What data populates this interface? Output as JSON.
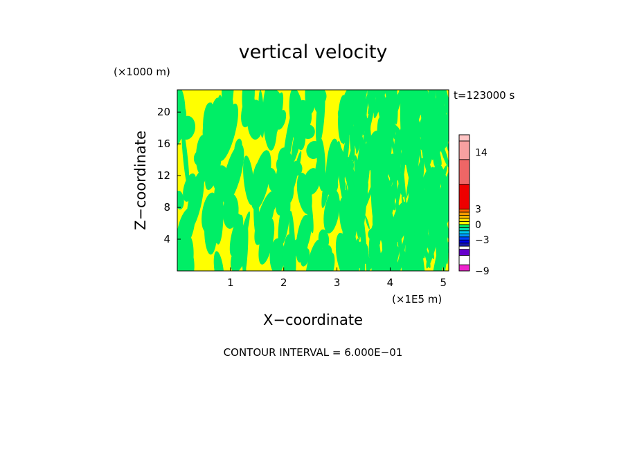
{
  "chart_data": {
    "type": "heatmap",
    "title": "vertical velocity",
    "xlabel": "X−coordinate",
    "ylabel": "Z−coordinate",
    "x_unit": "(×1E5 m)",
    "y_unit": "(×1000 m)",
    "xlim": [
      0,
      5.1
    ],
    "ylim": [
      0,
      22.8
    ],
    "x_ticks": [
      1,
      2,
      3,
      4,
      5
    ],
    "y_ticks": [
      4,
      8,
      12,
      16,
      20
    ],
    "time_label": "t=123000 s",
    "footer": "CONTOUR INTERVAL = 6.000E−01",
    "field_colors": {
      "positive": "#ffff00",
      "negative": "#00ee66"
    },
    "colorbar": {
      "tick_labels": [
        "14",
        "3",
        "0",
        "−3",
        "−9"
      ],
      "tick_values": [
        14,
        3,
        0,
        -3,
        -9
      ],
      "segments": [
        {
          "lo": -9.0,
          "hi": -7.8,
          "color": "#ee22cc"
        },
        {
          "lo": -7.8,
          "hi": -6.0,
          "color": "#ffffff"
        },
        {
          "lo": -6.0,
          "hi": -4.8,
          "color": "#6600cc"
        },
        {
          "lo": -4.8,
          "hi": -4.2,
          "color": "#ffffff"
        },
        {
          "lo": -4.2,
          "hi": -3.6,
          "color": "#1a1aaa"
        },
        {
          "lo": -3.6,
          "hi": -3.0,
          "color": "#0000ee"
        },
        {
          "lo": -3.0,
          "hi": -2.4,
          "color": "#0044ff"
        },
        {
          "lo": -2.4,
          "hi": -1.8,
          "color": "#0099ff"
        },
        {
          "lo": -1.8,
          "hi": -1.2,
          "color": "#00ccee"
        },
        {
          "lo": -1.2,
          "hi": -0.6,
          "color": "#00ddaa"
        },
        {
          "lo": -0.6,
          "hi": 0.0,
          "color": "#00ee66"
        },
        {
          "lo": 0.0,
          "hi": 0.6,
          "color": "#ffff00"
        },
        {
          "lo": 0.6,
          "hi": 1.2,
          "color": "#ffdd00"
        },
        {
          "lo": 1.2,
          "hi": 1.8,
          "color": "#ffbb00"
        },
        {
          "lo": 1.8,
          "hi": 2.4,
          "color": "#ff9900"
        },
        {
          "lo": 2.4,
          "hi": 3.0,
          "color": "#ff6600"
        },
        {
          "lo": 3.0,
          "hi": 7.8,
          "color": "#ee0000"
        },
        {
          "lo": 7.8,
          "hi": 12.6,
          "color": "#ee6666"
        },
        {
          "lo": 12.6,
          "hi": 16.2,
          "color": "#f7a0a0"
        },
        {
          "lo": 16.2,
          "hi": 17.4,
          "color": "#ffc4c4"
        }
      ]
    }
  }
}
